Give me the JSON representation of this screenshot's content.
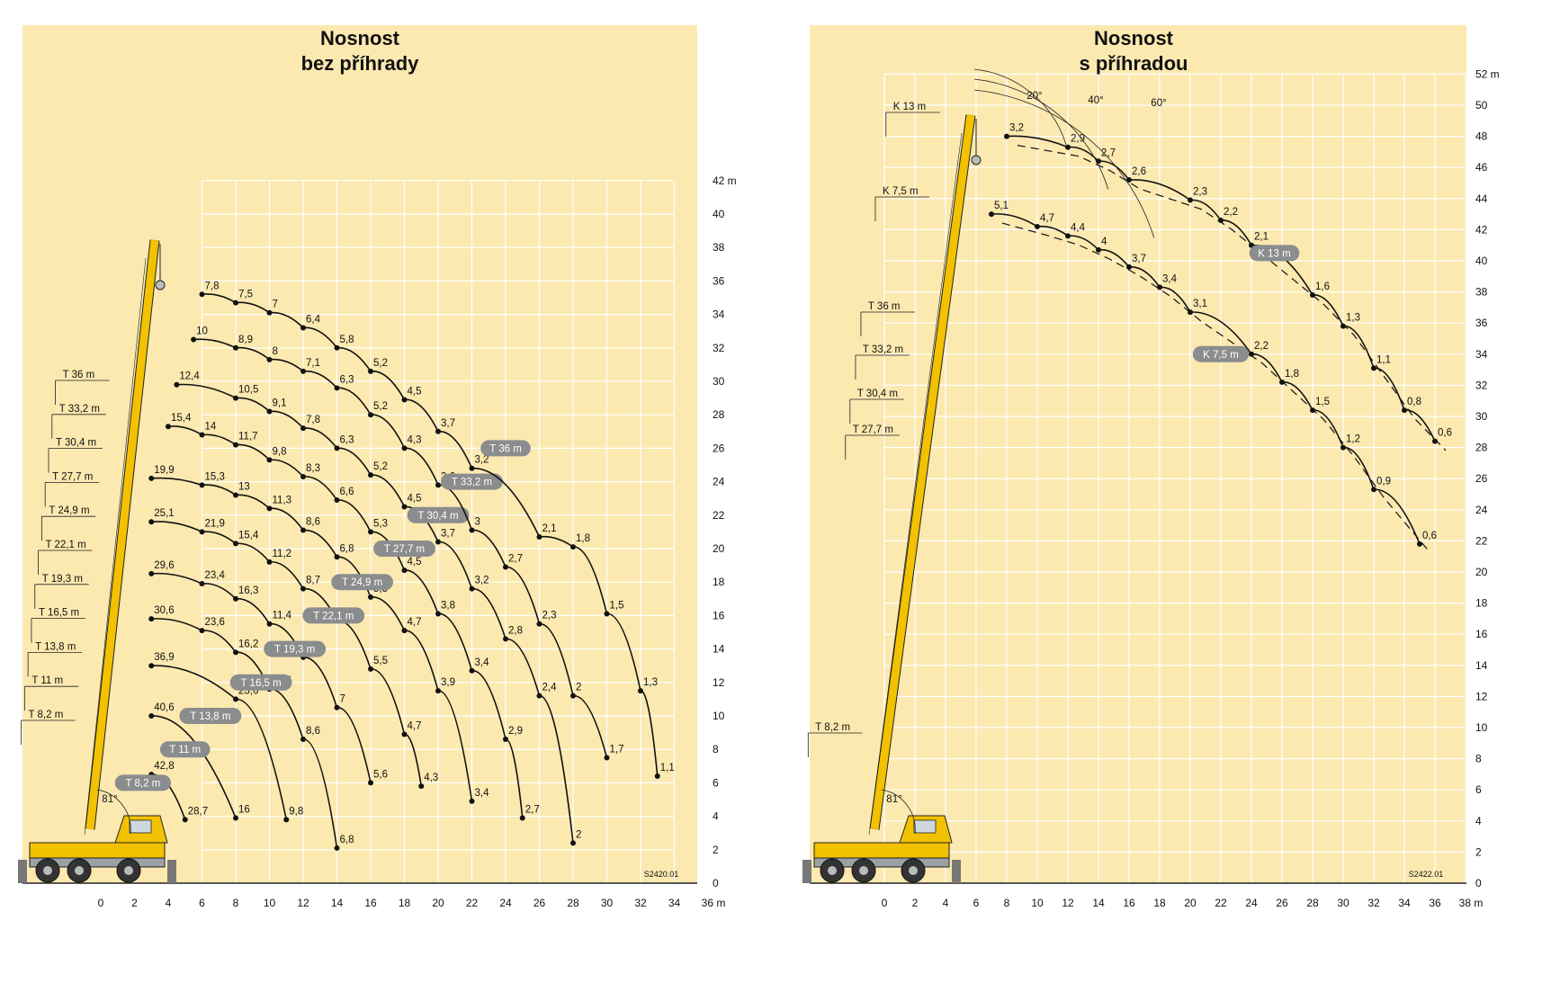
{
  "chart_data": [
    {
      "type": "line",
      "title": "Nosnost\nbez příhrady",
      "code": "S2420.01",
      "x_ticks": [
        "0",
        "2",
        "4",
        "6",
        "8",
        "10",
        "12",
        "14",
        "16",
        "18",
        "20",
        "22",
        "24",
        "26",
        "28",
        "30",
        "32",
        "34",
        "36 m"
      ],
      "y_ticks": [
        "0",
        "2",
        "4",
        "6",
        "8",
        "10",
        "12",
        "14",
        "16",
        "18",
        "20",
        "22",
        "24",
        "26",
        "28",
        "30",
        "32",
        "34",
        "36",
        "38",
        "40",
        "42 m"
      ],
      "xlim": [
        -5,
        36
      ],
      "ylim": [
        0,
        42
      ],
      "grid": true,
      "boom_angle": "81°",
      "boom_labels": [
        "T 8,2 m",
        "T 11 m",
        "T 13,8 m",
        "T 16,5 m",
        "T 19,3 m",
        "T 22,1 m",
        "T 24,9 m",
        "T 27,7 m",
        "T 30,4 m",
        "T 33,2 m",
        "T 36 m"
      ],
      "series": [
        {
          "name": "T 8,2 m",
          "x": [
            3.0,
            5.0
          ],
          "y": [
            6.5,
            3.8
          ],
          "labels": [
            "42,8",
            "28,7"
          ]
        },
        {
          "name": "T 11 m",
          "x": [
            3.0,
            8.0
          ],
          "y": [
            10.0,
            3.9
          ],
          "labels": [
            "40,6",
            "16"
          ]
        },
        {
          "name": "T 13,8 m",
          "x": [
            3.0,
            8.0,
            11.0
          ],
          "y": [
            13.0,
            11.0,
            3.8
          ],
          "labels": [
            "36,9",
            "23,6",
            "9,8"
          ]
        },
        {
          "name": "T 16,5 m",
          "x": [
            3.0,
            6.0,
            8.0,
            10.0,
            12.0,
            14.0
          ],
          "y": [
            15.8,
            15.1,
            13.8,
            11.6,
            8.6,
            2.1
          ],
          "labels": [
            "30,6",
            "23,6",
            "16,2",
            "11,4",
            "8,6",
            "6,8"
          ]
        },
        {
          "name": "T 19,3 m",
          "x": [
            3.0,
            6.0,
            8.0,
            10.0,
            12.0,
            14.0,
            16.0
          ],
          "y": [
            18.5,
            17.9,
            17.0,
            15.5,
            13.5,
            10.5,
            6.0
          ],
          "labels": [
            "29,6",
            "23,4",
            "16,3",
            "11,4",
            "8,7",
            "7",
            "5,6"
          ]
        },
        {
          "name": "T 22,1 m",
          "x": [
            3.0,
            6.0,
            8.0,
            10.0,
            12.0,
            14.0,
            16.0,
            18.0,
            19.0
          ],
          "y": [
            21.6,
            21.0,
            20.3,
            19.2,
            17.6,
            15.7,
            12.8,
            8.9,
            5.8
          ],
          "labels": [
            "25,1",
            "21,9",
            "15,4",
            "11,2",
            "8,7",
            "6,7",
            "5,5",
            "4,7",
            "4,3"
          ]
        },
        {
          "name": "T 24,9 m",
          "x": [
            3.0,
            6.0,
            8.0,
            10.0,
            12.0,
            14.0,
            16.0,
            18.0,
            20.0,
            22.0
          ],
          "y": [
            24.2,
            23.8,
            23.2,
            22.4,
            21.1,
            19.5,
            17.1,
            15.1,
            11.5,
            4.9
          ],
          "labels": [
            "19,9",
            "15,3",
            "13",
            "11,3",
            "8,6",
            "6,8",
            "5,5",
            "4,7",
            "3,9",
            "3,4"
          ]
        },
        {
          "name": "T 27,7 m",
          "x": [
            4.0,
            6.0,
            8.0,
            10.0,
            12.0,
            14.0,
            16.0,
            18.0,
            20.0,
            22.0,
            24.0,
            25.0
          ],
          "y": [
            27.3,
            26.8,
            26.2,
            25.3,
            24.3,
            22.9,
            21.0,
            18.7,
            16.1,
            12.7,
            8.6,
            3.9
          ],
          "labels": [
            "15,4",
            "14",
            "11,7",
            "9,8",
            "8,3",
            "6,6",
            "5,3",
            "4,5",
            "3,8",
            "3,4",
            "2,9",
            "2,7"
          ]
        },
        {
          "name": "T 30,4 m",
          "x": [
            4.5,
            8.0,
            10.0,
            12.0,
            14.0,
            16.0,
            18.0,
            20.0,
            22.0,
            24.0,
            26.0,
            28.0
          ],
          "y": [
            29.8,
            29.0,
            28.2,
            27.2,
            26.0,
            24.4,
            22.5,
            20.4,
            17.6,
            14.6,
            11.2,
            2.4
          ],
          "labels": [
            "12,4",
            "10,5",
            "9,1",
            "7,8",
            "6,3",
            "5,2",
            "4,5",
            "3,7",
            "3,2",
            "2,8",
            "2,4",
            "2"
          ]
        },
        {
          "name": "T 33,2 m",
          "x": [
            5.5,
            8.0,
            10.0,
            12.0,
            14.0,
            16.0,
            18.0,
            20.0,
            22.0,
            24.0,
            26.0,
            28.0,
            30.0
          ],
          "y": [
            32.5,
            32.0,
            31.3,
            30.6,
            29.6,
            28.0,
            26.0,
            23.8,
            21.1,
            18.9,
            15.5,
            11.2,
            7.5
          ],
          "labels": [
            "10",
            "8,9",
            "8",
            "7,1",
            "6,3",
            "5,2",
            "4,3",
            "3,6",
            "3",
            "2,7",
            "2,3",
            "2",
            "1,7"
          ]
        },
        {
          "name": "T 36 m",
          "x": [
            6.0,
            8.0,
            10.0,
            12.0,
            14.0,
            16.0,
            18.0,
            20.0,
            22.0,
            26.0,
            28.0,
            30.0,
            32.0,
            33.0
          ],
          "y": [
            35.2,
            34.7,
            34.1,
            33.2,
            32.0,
            30.6,
            28.9,
            27.0,
            24.8,
            20.7,
            20.1,
            16.1,
            11.5,
            6.4
          ],
          "labels": [
            "7,8",
            "7,5",
            "7",
            "6,4",
            "5,8",
            "5,2",
            "4,5",
            "3,7",
            "3,2",
            "2,1",
            "1,8",
            "1,5",
            "1,3",
            "1,1"
          ]
        }
      ]
    },
    {
      "type": "line",
      "title": "Nosnost\ns příhradou",
      "code": "S2422.01",
      "x_ticks": [
        "0",
        "2",
        "4",
        "6",
        "8",
        "10",
        "12",
        "14",
        "16",
        "18",
        "20",
        "22",
        "24",
        "26",
        "28",
        "30",
        "32",
        "34",
        "36",
        "38 m"
      ],
      "y_ticks": [
        "0",
        "2",
        "4",
        "6",
        "8",
        "10",
        "12",
        "14",
        "16",
        "18",
        "20",
        "22",
        "24",
        "26",
        "28",
        "30",
        "32",
        "34",
        "36",
        "38",
        "40",
        "42",
        "44",
        "46",
        "48",
        "50",
        "52 m"
      ],
      "xlim": [
        -4,
        38
      ],
      "ylim": [
        0,
        52
      ],
      "grid": true,
      "boom_angle": "81°",
      "jib_angles": [
        "20°",
        "40°",
        "60°"
      ],
      "boom_labels": [
        "T 8,2 m",
        "T 27,7 m",
        "T 30,4 m",
        "T 33,2 m",
        "T 36 m",
        "K 7,5 m",
        "K 13 m"
      ],
      "series": [
        {
          "name": "K 13 m",
          "x": [
            8.0,
            12.0,
            14.0,
            16.0,
            20.0,
            22.0,
            24.0,
            28.0,
            30.0,
            32.0,
            34.0,
            36.0
          ],
          "y": [
            48.0,
            47.3,
            46.4,
            45.2,
            43.9,
            42.6,
            41.0,
            37.8,
            35.8,
            33.1,
            30.4,
            28.4
          ],
          "labels": [
            "3,2",
            "2,9",
            "2,7",
            "2,6",
            "2,3",
            "2,2",
            "2,1",
            "1,6",
            "1,3",
            "1,1",
            "0,8",
            "0,6"
          ]
        },
        {
          "name": "K 7,5 m",
          "x": [
            7.0,
            10.0,
            12.0,
            14.0,
            16.0,
            18.0,
            20.0,
            24.0,
            26.0,
            28.0,
            30.0,
            32.0,
            35.0
          ],
          "y": [
            43.0,
            42.2,
            41.6,
            40.7,
            39.6,
            38.3,
            36.7,
            34.0,
            32.2,
            30.4,
            28.0,
            25.3,
            21.8
          ],
          "labels": [
            "5,1",
            "4,7",
            "4,4",
            "4",
            "3,7",
            "3,4",
            "3,1",
            "2,2",
            "1,8",
            "1,5",
            "1,2",
            "0,9",
            "0,6"
          ]
        }
      ]
    }
  ]
}
